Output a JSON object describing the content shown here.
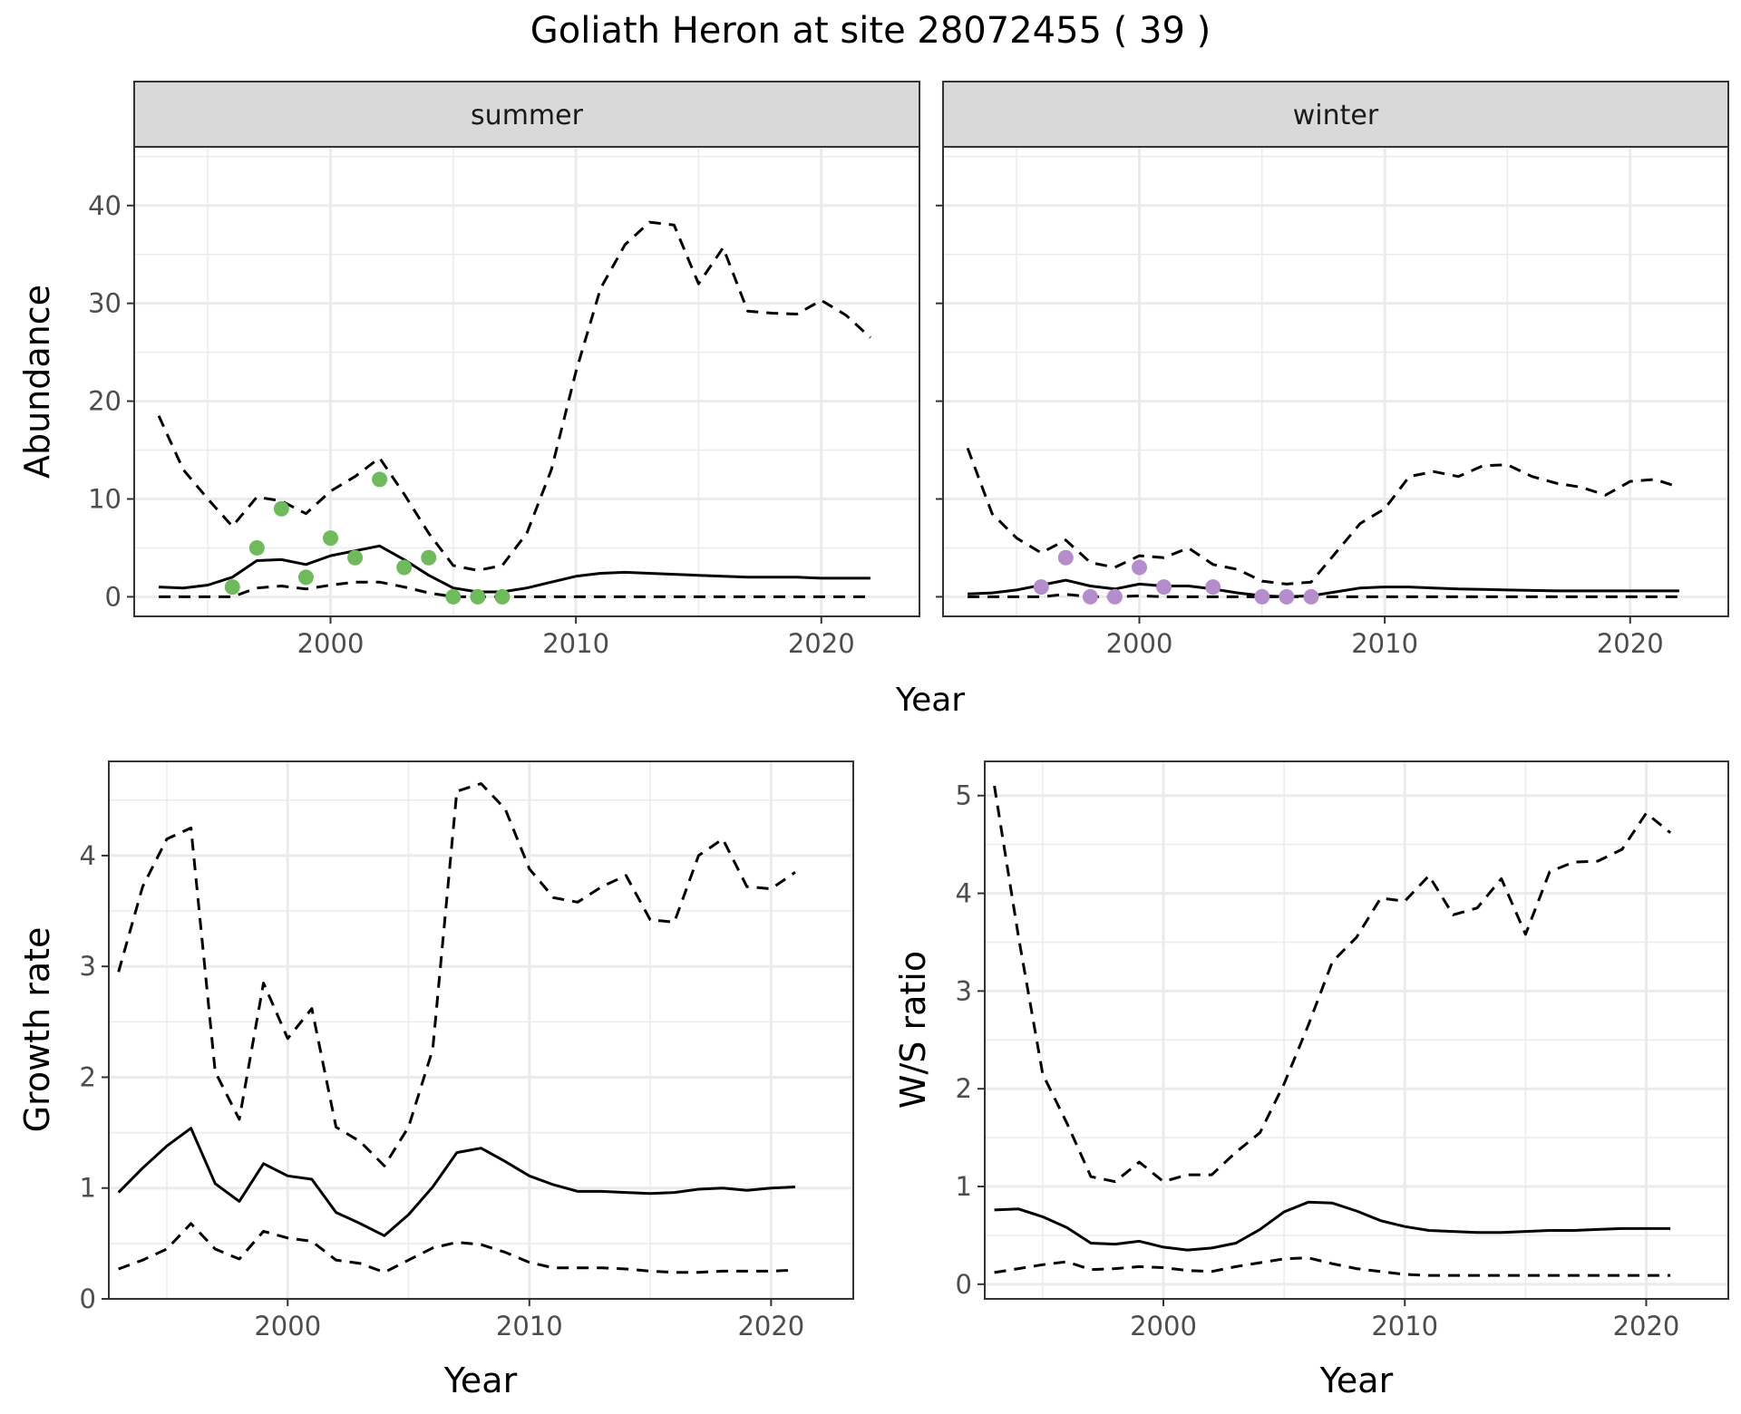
{
  "figure": {
    "title": "Goliath Heron at site 28072455 ( 39 )",
    "top_xlabel": "Year"
  },
  "colors": {
    "summer_points": "#6dbb5a",
    "winter_points": "#b58ccc",
    "line": "#000000",
    "strip_fill": "#d9d9d9",
    "grid": "#ebebeb"
  },
  "chart_data": [
    {
      "type": "line",
      "panel": "summer",
      "strip_label": "summer",
      "xlabel": "",
      "ylabel": "Abundance",
      "xlim": [
        1992,
        2024
      ],
      "ylim": [
        -2,
        46
      ],
      "xticks": [
        2000,
        2010,
        2020
      ],
      "yticks": [
        0,
        10,
        20,
        30,
        40
      ],
      "grid": true,
      "x": [
        1993,
        1994,
        1995,
        1996,
        1997,
        1998,
        1999,
        2000,
        2001,
        2002,
        2003,
        2004,
        2005,
        2006,
        2007,
        2008,
        2009,
        2010,
        2011,
        2012,
        2013,
        2014,
        2015,
        2016,
        2017,
        2018,
        2019,
        2020,
        2021,
        2022
      ],
      "series": [
        {
          "role": "mean",
          "style": "solid",
          "values": [
            1.0,
            0.9,
            1.2,
            2.0,
            3.7,
            3.8,
            3.3,
            4.2,
            4.7,
            5.2,
            3.8,
            2.2,
            0.9,
            0.5,
            0.5,
            0.9,
            1.5,
            2.1,
            2.4,
            2.5,
            2.4,
            2.3,
            2.2,
            2.1,
            2.0,
            2.0,
            2.0,
            1.9,
            1.9,
            1.9
          ]
        },
        {
          "role": "upper",
          "style": "dashed",
          "values": [
            18.5,
            13.0,
            10.0,
            7.2,
            10.2,
            9.8,
            8.5,
            10.8,
            12.3,
            14.2,
            10.5,
            6.5,
            3.2,
            2.7,
            3.2,
            6.5,
            13.0,
            23.0,
            31.5,
            36.0,
            38.3,
            38.0,
            32.0,
            35.7,
            29.2,
            29.0,
            28.9,
            30.3,
            28.8,
            26.5
          ]
        },
        {
          "role": "lower",
          "style": "dashed",
          "values": [
            0,
            0,
            0,
            0,
            0.9,
            1.1,
            0.8,
            1.2,
            1.5,
            1.5,
            1.0,
            0.4,
            0,
            0,
            0,
            0,
            0,
            0,
            0,
            0,
            0,
            0,
            0,
            0,
            0,
            0,
            0,
            0,
            0,
            0
          ]
        }
      ],
      "points": {
        "x": [
          1996,
          1997,
          1998,
          1999,
          2000,
          2001,
          2002,
          2003,
          2004,
          2005,
          2006,
          2007
        ],
        "y": [
          1,
          5,
          9,
          2,
          6,
          4,
          12,
          3,
          4,
          0,
          0,
          0
        ]
      }
    },
    {
      "type": "line",
      "panel": "winter",
      "strip_label": "winter",
      "xlabel": "",
      "ylabel": "",
      "xlim": [
        1992,
        2024
      ],
      "ylim": [
        -2,
        46
      ],
      "xticks": [
        2000,
        2010,
        2020
      ],
      "yticks": [
        0,
        10,
        20,
        30,
        40
      ],
      "grid": true,
      "x": [
        1993,
        1994,
        1995,
        1996,
        1997,
        1998,
        1999,
        2000,
        2001,
        2002,
        2003,
        2004,
        2005,
        2006,
        2007,
        2008,
        2009,
        2010,
        2011,
        2012,
        2013,
        2014,
        2015,
        2016,
        2017,
        2018,
        2019,
        2020,
        2021,
        2022
      ],
      "series": [
        {
          "role": "mean",
          "style": "solid",
          "values": [
            0.3,
            0.4,
            0.7,
            1.2,
            1.7,
            1.1,
            0.8,
            1.3,
            1.1,
            1.1,
            0.8,
            0.4,
            0.1,
            0.0,
            0.1,
            0.5,
            0.9,
            1.0,
            1.0,
            0.9,
            0.8,
            0.75,
            0.7,
            0.65,
            0.6,
            0.6,
            0.6,
            0.6,
            0.6,
            0.6
          ]
        },
        {
          "role": "upper",
          "style": "dashed",
          "values": [
            15.2,
            8.5,
            6.0,
            4.5,
            5.8,
            3.5,
            3.0,
            4.2,
            4.0,
            5.0,
            3.3,
            2.8,
            1.6,
            1.3,
            1.5,
            4.5,
            7.5,
            9.0,
            12.3,
            12.8,
            12.3,
            13.4,
            13.5,
            12.3,
            11.6,
            11.2,
            10.4,
            11.8,
            12.0,
            11.2
          ]
        },
        {
          "role": "lower",
          "style": "dashed",
          "values": [
            0,
            0,
            0,
            0,
            0.25,
            0,
            0,
            0.1,
            0,
            0,
            0,
            0,
            0,
            0,
            0,
            0,
            0,
            0,
            0,
            0,
            0,
            0,
            0,
            0,
            0,
            0,
            0,
            0,
            0,
            0
          ]
        }
      ],
      "points": {
        "x": [
          1996,
          1997,
          1998,
          1999,
          2000,
          2001,
          2003,
          2005,
          2006,
          2007
        ],
        "y": [
          1,
          4,
          0,
          0,
          3,
          1,
          1,
          0,
          0,
          0
        ]
      }
    },
    {
      "type": "line",
      "panel": "growth",
      "xlabel": "Year",
      "ylabel": "Growth rate",
      "xlim": [
        1992.6,
        2023.4
      ],
      "ylim": [
        0,
        4.85
      ],
      "xticks": [
        2000,
        2010,
        2020
      ],
      "yticks": [
        0,
        1,
        2,
        3,
        4
      ],
      "grid": true,
      "x": [
        1993,
        1994,
        1995,
        1996,
        1997,
        1998,
        1999,
        2000,
        2001,
        2002,
        2003,
        2004,
        2005,
        2006,
        2007,
        2008,
        2009,
        2010,
        2011,
        2012,
        2013,
        2014,
        2015,
        2016,
        2017,
        2018,
        2019,
        2020,
        2021
      ],
      "series": [
        {
          "role": "mean",
          "style": "solid",
          "values": [
            0.96,
            1.18,
            1.38,
            1.54,
            1.04,
            0.88,
            1.22,
            1.11,
            1.08,
            0.78,
            0.68,
            0.57,
            0.76,
            1.01,
            1.32,
            1.36,
            1.24,
            1.11,
            1.03,
            0.97,
            0.97,
            0.96,
            0.95,
            0.96,
            0.99,
            1.0,
            0.98,
            1.0,
            1.01
          ]
        },
        {
          "role": "upper",
          "style": "dashed",
          "values": [
            2.95,
            3.72,
            4.15,
            4.25,
            2.05,
            1.62,
            2.85,
            2.35,
            2.62,
            1.55,
            1.42,
            1.2,
            1.55,
            2.25,
            4.58,
            4.65,
            4.42,
            3.88,
            3.62,
            3.58,
            3.72,
            3.82,
            3.42,
            3.4,
            4.0,
            4.15,
            3.72,
            3.7,
            3.85
          ]
        },
        {
          "role": "lower",
          "style": "dashed",
          "values": [
            0.27,
            0.35,
            0.45,
            0.68,
            0.45,
            0.36,
            0.61,
            0.55,
            0.52,
            0.35,
            0.32,
            0.24,
            0.35,
            0.46,
            0.51,
            0.49,
            0.42,
            0.33,
            0.28,
            0.28,
            0.28,
            0.27,
            0.25,
            0.24,
            0.24,
            0.25,
            0.25,
            0.25,
            0.26
          ]
        }
      ]
    },
    {
      "type": "line",
      "panel": "ratio",
      "xlabel": "Year",
      "ylabel": "W/S ratio",
      "xlim": [
        1992.6,
        2023.4
      ],
      "ylim": [
        -0.15,
        5.35
      ],
      "xticks": [
        2000,
        2010,
        2020
      ],
      "yticks": [
        0,
        1,
        2,
        3,
        4,
        5
      ],
      "grid": true,
      "x": [
        1993,
        1994,
        1995,
        1996,
        1997,
        1998,
        1999,
        2000,
        2001,
        2002,
        2003,
        2004,
        2005,
        2006,
        2007,
        2008,
        2009,
        2010,
        2011,
        2012,
        2013,
        2014,
        2015,
        2016,
        2017,
        2018,
        2019,
        2020,
        2021
      ],
      "series": [
        {
          "role": "mean",
          "style": "solid",
          "values": [
            0.76,
            0.77,
            0.69,
            0.58,
            0.42,
            0.41,
            0.44,
            0.38,
            0.35,
            0.37,
            0.42,
            0.56,
            0.74,
            0.84,
            0.83,
            0.75,
            0.65,
            0.59,
            0.55,
            0.54,
            0.53,
            0.53,
            0.54,
            0.55,
            0.55,
            0.56,
            0.57,
            0.57,
            0.57
          ]
        },
        {
          "role": "upper",
          "style": "dashed",
          "values": [
            5.1,
            3.55,
            2.15,
            1.65,
            1.1,
            1.05,
            1.25,
            1.05,
            1.12,
            1.12,
            1.35,
            1.55,
            2.05,
            2.65,
            3.3,
            3.55,
            3.95,
            3.92,
            4.18,
            3.78,
            3.85,
            4.15,
            3.58,
            4.22,
            4.32,
            4.33,
            4.45,
            4.82,
            4.62
          ]
        },
        {
          "role": "lower",
          "style": "dashed",
          "values": [
            0.12,
            0.16,
            0.2,
            0.23,
            0.15,
            0.16,
            0.18,
            0.17,
            0.14,
            0.13,
            0.18,
            0.22,
            0.26,
            0.27,
            0.21,
            0.16,
            0.13,
            0.1,
            0.09,
            0.09,
            0.09,
            0.09,
            0.09,
            0.09,
            0.09,
            0.09,
            0.09,
            0.09,
            0.09
          ]
        }
      ]
    }
  ]
}
